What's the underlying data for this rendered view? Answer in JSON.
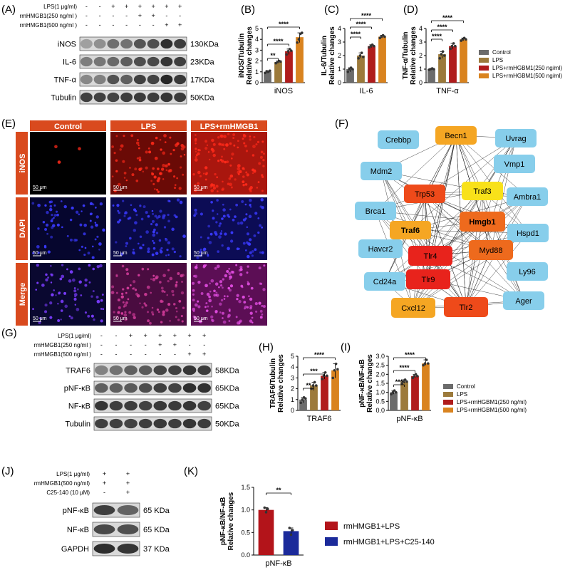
{
  "panel_labels": {
    "A": "(A)",
    "B": "(B)",
    "C": "(C)",
    "D": "(D)",
    "E": "(E)",
    "F": "(F)",
    "G": "(G)",
    "H": "(H)",
    "I": "(I)",
    "J": "(J)",
    "K": "(K)"
  },
  "colors": {
    "control": "#6b6b6b",
    "lps": "#9c7a3b",
    "rm250": "#b01c1c",
    "rm500": "#d9831f",
    "sig_line": "#000000",
    "rmLPS": "#b3141a",
    "rmLPS_C25": "#1b2a9a"
  },
  "legend": {
    "items": [
      "Control",
      "LPS",
      "LPS+rmHGBM1(250 ng/ml)",
      "LPS+rmHGBM1(500 ng/ml)"
    ],
    "items_I": [
      "Control",
      "LPS",
      "LPS+rmHGBM1(250 ng/ml)",
      "LPS+rmHGBM1(500 ng/ml)"
    ],
    "items_K": [
      "rmHMGB1+LPS",
      "rmHMGB1+LPS+C25-140"
    ]
  },
  "blotA": {
    "treatments": [
      {
        "label": "LPS(1 μg/ml)",
        "signs": [
          "-",
          "-",
          "+",
          "+",
          "+",
          "+",
          "+",
          "+"
        ]
      },
      {
        "label": "rmHMGB1(250 ng/ml )",
        "signs": [
          "-",
          "-",
          "-",
          "-",
          "+",
          "+",
          "-",
          "-"
        ]
      },
      {
        "label": "rmHMGB1(500 ng/ml )",
        "signs": [
          "-",
          "-",
          "-",
          "-",
          "-",
          "-",
          "+",
          "+"
        ]
      }
    ],
    "rows": [
      {
        "name": "iNOS",
        "size": "130KDa"
      },
      {
        "name": "IL-6",
        "size": "23KDa"
      },
      {
        "name": "TNF-α",
        "size": "17KDa"
      },
      {
        "name": "Tubulin",
        "size": "50KDa"
      }
    ]
  },
  "blotG": {
    "treatments": [
      {
        "label": "LPS(1 μg/ml)",
        "signs": [
          "-",
          "-",
          "+",
          "+",
          "+",
          "+",
          "+",
          "+"
        ]
      },
      {
        "label": "rmHMGB1(250 ng/ml )",
        "signs": [
          "-",
          "-",
          "-",
          "-",
          "+",
          "+",
          "-",
          "-"
        ]
      },
      {
        "label": "rmHMGB1(500 ng/ml )",
        "signs": [
          "-",
          "-",
          "-",
          "-",
          "-",
          "-",
          "+",
          "+"
        ]
      }
    ],
    "rows": [
      {
        "name": "TRAF6",
        "size": "58KDa"
      },
      {
        "name": "pNF-κB",
        "size": "65KDa"
      },
      {
        "name": "NF-κB",
        "size": "65KDa"
      },
      {
        "name": "Tubulin",
        "size": "50KDa"
      }
    ]
  },
  "blotJ": {
    "treatments": [
      {
        "label": "LPS(1 μg/ml)",
        "signs": [
          "+",
          "+"
        ]
      },
      {
        "label": "rmHMGB1(500 ng/ml)",
        "signs": [
          "+",
          "+"
        ]
      },
      {
        "label": "C25-140 (10 μM)",
        "signs": [
          "-",
          "+"
        ]
      }
    ],
    "rows": [
      {
        "name": "pNF-κB",
        "size": "65 KDa"
      },
      {
        "name": "NF-κB",
        "size": "65 KDa"
      },
      {
        "name": "GAPDH",
        "size": "37 KDa"
      }
    ]
  },
  "micro": {
    "columns": [
      "Control",
      "LPS",
      "LPS+rmHMGB1"
    ],
    "rows": [
      "iNOS",
      "DAPI",
      "Merge"
    ],
    "scale": "50 μm"
  },
  "network": {
    "nodes": [
      {
        "id": "Crebbp",
        "tier": "blue"
      },
      {
        "id": "Becn1",
        "tier": "orange"
      },
      {
        "id": "Uvrag",
        "tier": "blue"
      },
      {
        "id": "Vmp1",
        "tier": "blue"
      },
      {
        "id": "Mdm2",
        "tier": "blue"
      },
      {
        "id": "Trp53",
        "tier": "redorange"
      },
      {
        "id": "Traf3",
        "tier": "yellow"
      },
      {
        "id": "Ambra1",
        "tier": "blue"
      },
      {
        "id": "Brca1",
        "tier": "blue"
      },
      {
        "id": "Traf6",
        "tier": "orange",
        "bold": true
      },
      {
        "id": "Hmgb1",
        "tier": "dark_orange",
        "bold": true
      },
      {
        "id": "Hspd1",
        "tier": "blue"
      },
      {
        "id": "Havcr2",
        "tier": "blue"
      },
      {
        "id": "Tlr4",
        "tier": "red"
      },
      {
        "id": "Myd88",
        "tier": "dark_orange"
      },
      {
        "id": "Ly96",
        "tier": "blue"
      },
      {
        "id": "Cd24a",
        "tier": "blue"
      },
      {
        "id": "Tlr9",
        "tier": "red"
      },
      {
        "id": "Cxcl12",
        "tier": "orange"
      },
      {
        "id": "Tlr2",
        "tier": "redorange"
      },
      {
        "id": "Ager",
        "tier": "blue"
      }
    ],
    "tier_colors": {
      "blue": "#87ceeb",
      "yellow": "#f8e11a",
      "orange": "#f5a623",
      "dark_orange": "#ee6a1d",
      "redorange": "#ee4a1a",
      "red": "#e8231c"
    }
  },
  "chart_data": [
    {
      "id": "B",
      "type": "bar",
      "title": "",
      "xlabel": "iNOS",
      "ylabel": "iNOS/Tubulin\nRelative changes",
      "ylim": [
        0,
        5
      ],
      "yticks": [
        "0",
        "1",
        "2",
        "3",
        "4",
        "5"
      ],
      "values": [
        1.0,
        1.9,
        2.9,
        4.2
      ],
      "points": [
        [
          0.9,
          1.05,
          1.0,
          1.1
        ],
        [
          1.8,
          1.9,
          2.0,
          1.95
        ],
        [
          2.6,
          2.9,
          3.1,
          2.95
        ],
        [
          3.7,
          4.0,
          4.5,
          4.6
        ]
      ],
      "sig": [
        {
          "from": 0,
          "to": 1,
          "label": "**"
        },
        {
          "from": 0,
          "to": 2,
          "label": "****"
        },
        {
          "from": 0,
          "to": 3,
          "label": "****"
        }
      ]
    },
    {
      "id": "C",
      "type": "bar",
      "title": "",
      "xlabel": "IL-6",
      "ylabel": "IL-6/Tubulin\nRelative changes",
      "ylim": [
        0,
        4
      ],
      "yticks": [
        "0",
        "1",
        "2",
        "3",
        "4"
      ],
      "values": [
        1.0,
        2.0,
        2.7,
        3.4
      ],
      "points": [
        [
          0.8,
          1.0,
          1.1,
          1.0
        ],
        [
          1.8,
          2.0,
          2.2,
          1.9
        ],
        [
          2.6,
          2.7,
          2.8,
          2.7
        ],
        [
          3.3,
          3.4,
          3.5,
          3.4
        ]
      ],
      "sig": [
        {
          "from": 0,
          "to": 1,
          "label": "****"
        },
        {
          "from": 0,
          "to": 2,
          "label": "****"
        },
        {
          "from": 0,
          "to": 3,
          "label": "****"
        }
      ]
    },
    {
      "id": "D",
      "type": "bar",
      "title": "",
      "xlabel": "TNF-α",
      "ylabel": "TNF-α/Tubulin\nRelative changes",
      "ylim": [
        0,
        4
      ],
      "yticks": [
        "0",
        "1",
        "2",
        "3",
        "4"
      ],
      "values": [
        1.0,
        2.1,
        2.7,
        3.2
      ],
      "points": [
        [
          0.95,
          1.0,
          1.05,
          1.0
        ],
        [
          1.8,
          2.1,
          2.3,
          2.0
        ],
        [
          2.5,
          2.7,
          2.9,
          2.7
        ],
        [
          3.1,
          3.2,
          3.3,
          3.2
        ]
      ],
      "sig": [
        {
          "from": 0,
          "to": 1,
          "label": "****"
        },
        {
          "from": 0,
          "to": 2,
          "label": "****"
        },
        {
          "from": 0,
          "to": 3,
          "label": "****"
        }
      ]
    },
    {
      "id": "H",
      "type": "bar",
      "title": "",
      "xlabel": "TRAF6",
      "ylabel": "TRAF6/Tubulin\nRelative changes",
      "ylim": [
        0,
        5
      ],
      "yticks": [
        "0",
        "1",
        "2",
        "3",
        "4",
        "5"
      ],
      "values": [
        1.0,
        2.3,
        3.2,
        3.7
      ],
      "points": [
        [
          0.7,
          1.0,
          1.2,
          1.1
        ],
        [
          2.0,
          2.3,
          2.6,
          2.3
        ],
        [
          2.9,
          3.2,
          3.5,
          3.2
        ],
        [
          3.0,
          3.7,
          4.3,
          3.8
        ]
      ],
      "sig": [
        {
          "from": 0,
          "to": 1,
          "label": "**"
        },
        {
          "from": 0,
          "to": 2,
          "label": "***"
        },
        {
          "from": 0,
          "to": 3,
          "label": "****"
        }
      ]
    },
    {
      "id": "I",
      "type": "bar",
      "title": "",
      "xlabel": "pNF-κB",
      "ylabel": "pNF-κB/NF-κB\nRelative changes",
      "ylim": [
        0,
        3
      ],
      "yticks": [
        "0.0",
        "0.5",
        "1.0",
        "1.5",
        "2.0",
        "2.5",
        "3.0"
      ],
      "values": [
        1.0,
        1.6,
        1.9,
        2.6
      ],
      "points": [
        [
          0.9,
          1.0,
          1.1,
          1.0
        ],
        [
          1.5,
          1.6,
          1.7,
          1.6
        ],
        [
          1.8,
          1.9,
          2.0,
          1.9
        ],
        [
          2.5,
          2.6,
          2.8,
          2.6
        ]
      ],
      "sig": [
        {
          "from": 0,
          "to": 1,
          "label": "***"
        },
        {
          "from": 0,
          "to": 2,
          "label": "****"
        },
        {
          "from": 0,
          "to": 3,
          "label": "****"
        }
      ]
    },
    {
      "id": "K",
      "type": "bar",
      "title": "",
      "xlabel": "pNF-κB",
      "ylabel": "pNF-κB/NF-κB\nRelative changes",
      "ylim": [
        0,
        1.5
      ],
      "yticks": [
        "0.0",
        "0.5",
        "1.0",
        "1.5"
      ],
      "values": [
        1.0,
        0.53
      ],
      "points": [
        [
          1.05,
          0.95,
          1.02
        ],
        [
          0.6,
          0.45,
          0.55
        ]
      ],
      "sig": [
        {
          "from": 0,
          "to": 1,
          "label": "**"
        }
      ]
    }
  ]
}
